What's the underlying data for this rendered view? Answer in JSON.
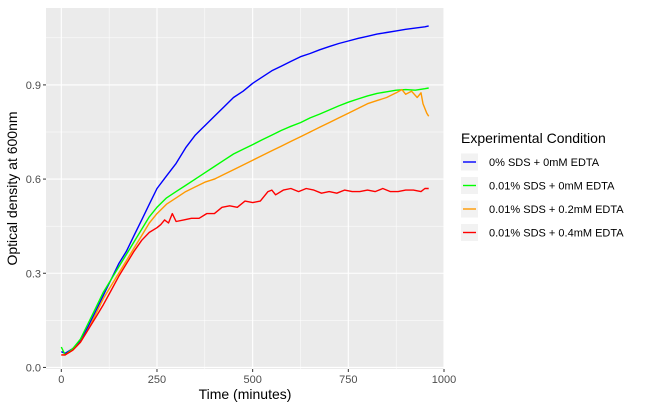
{
  "chart_data": {
    "type": "line",
    "title": "",
    "xlabel": "Time (minutes)",
    "ylabel": "Optical density at 600nm",
    "xlim": [
      -40,
      1000
    ],
    "ylim": [
      -0.005,
      1.145
    ],
    "x_ticks": [
      0,
      250,
      500,
      750,
      1000
    ],
    "x_tick_labels": [
      "0",
      "250",
      "500",
      "750",
      "1000"
    ],
    "y_ticks": [
      0.0,
      0.3,
      0.6,
      0.9
    ],
    "y_tick_labels": [
      "0.0",
      "0.3",
      "0.6",
      "0.9"
    ],
    "grid": true,
    "legend_position": "right",
    "legend_title": "Experimental Condition",
    "series": [
      {
        "name": "0% SDS + 0mM EDTA",
        "color": "#0000ff",
        "points": [
          [
            0,
            0.05
          ],
          [
            10,
            0.045
          ],
          [
            30,
            0.06
          ],
          [
            50,
            0.085
          ],
          [
            70,
            0.13
          ],
          [
            90,
            0.18
          ],
          [
            110,
            0.23
          ],
          [
            130,
            0.28
          ],
          [
            150,
            0.33
          ],
          [
            170,
            0.37
          ],
          [
            190,
            0.42
          ],
          [
            210,
            0.47
          ],
          [
            230,
            0.52
          ],
          [
            250,
            0.57
          ],
          [
            275,
            0.61
          ],
          [
            300,
            0.65
          ],
          [
            325,
            0.7
          ],
          [
            350,
            0.74
          ],
          [
            375,
            0.77
          ],
          [
            400,
            0.8
          ],
          [
            425,
            0.83
          ],
          [
            450,
            0.86
          ],
          [
            475,
            0.88
          ],
          [
            500,
            0.905
          ],
          [
            525,
            0.925
          ],
          [
            550,
            0.945
          ],
          [
            575,
            0.96
          ],
          [
            600,
            0.975
          ],
          [
            625,
            0.99
          ],
          [
            650,
            1.0
          ],
          [
            675,
            1.012
          ],
          [
            700,
            1.022
          ],
          [
            725,
            1.032
          ],
          [
            750,
            1.04
          ],
          [
            775,
            1.048
          ],
          [
            800,
            1.055
          ],
          [
            825,
            1.062
          ],
          [
            850,
            1.067
          ],
          [
            875,
            1.072
          ],
          [
            900,
            1.077
          ],
          [
            925,
            1.081
          ],
          [
            950,
            1.085
          ],
          [
            960,
            1.088
          ]
        ]
      },
      {
        "name": "0.01% SDS + 0mM EDTA",
        "color": "#00ff00",
        "points": [
          [
            0,
            0.065
          ],
          [
            10,
            0.04
          ],
          [
            30,
            0.06
          ],
          [
            50,
            0.09
          ],
          [
            70,
            0.14
          ],
          [
            90,
            0.19
          ],
          [
            110,
            0.24
          ],
          [
            130,
            0.28
          ],
          [
            150,
            0.32
          ],
          [
            170,
            0.36
          ],
          [
            190,
            0.4
          ],
          [
            210,
            0.44
          ],
          [
            230,
            0.48
          ],
          [
            250,
            0.51
          ],
          [
            275,
            0.54
          ],
          [
            300,
            0.56
          ],
          [
            325,
            0.58
          ],
          [
            350,
            0.6
          ],
          [
            375,
            0.62
          ],
          [
            400,
            0.64
          ],
          [
            425,
            0.66
          ],
          [
            450,
            0.68
          ],
          [
            475,
            0.695
          ],
          [
            500,
            0.71
          ],
          [
            525,
            0.725
          ],
          [
            550,
            0.74
          ],
          [
            575,
            0.755
          ],
          [
            600,
            0.768
          ],
          [
            625,
            0.78
          ],
          [
            650,
            0.795
          ],
          [
            675,
            0.807
          ],
          [
            700,
            0.82
          ],
          [
            725,
            0.833
          ],
          [
            750,
            0.845
          ],
          [
            775,
            0.855
          ],
          [
            800,
            0.865
          ],
          [
            825,
            0.873
          ],
          [
            850,
            0.878
          ],
          [
            875,
            0.883
          ],
          [
            900,
            0.885
          ],
          [
            925,
            0.883
          ],
          [
            950,
            0.888
          ],
          [
            960,
            0.89
          ]
        ]
      },
      {
        "name": "0.01% SDS + 0.2mM EDTA",
        "color": "#ff9900",
        "points": [
          [
            0,
            0.04
          ],
          [
            10,
            0.04
          ],
          [
            30,
            0.055
          ],
          [
            50,
            0.08
          ],
          [
            70,
            0.12
          ],
          [
            90,
            0.17
          ],
          [
            110,
            0.22
          ],
          [
            130,
            0.26
          ],
          [
            150,
            0.3
          ],
          [
            170,
            0.34
          ],
          [
            190,
            0.38
          ],
          [
            210,
            0.42
          ],
          [
            230,
            0.46
          ],
          [
            250,
            0.49
          ],
          [
            275,
            0.52
          ],
          [
            300,
            0.54
          ],
          [
            325,
            0.56
          ],
          [
            350,
            0.575
          ],
          [
            375,
            0.59
          ],
          [
            400,
            0.6
          ],
          [
            425,
            0.615
          ],
          [
            450,
            0.63
          ],
          [
            475,
            0.645
          ],
          [
            500,
            0.66
          ],
          [
            525,
            0.675
          ],
          [
            550,
            0.69
          ],
          [
            575,
            0.705
          ],
          [
            600,
            0.72
          ],
          [
            625,
            0.735
          ],
          [
            650,
            0.75
          ],
          [
            675,
            0.765
          ],
          [
            700,
            0.78
          ],
          [
            725,
            0.795
          ],
          [
            750,
            0.81
          ],
          [
            775,
            0.825
          ],
          [
            800,
            0.84
          ],
          [
            825,
            0.85
          ],
          [
            850,
            0.86
          ],
          [
            875,
            0.875
          ],
          [
            890,
            0.885
          ],
          [
            900,
            0.87
          ],
          [
            915,
            0.88
          ],
          [
            930,
            0.86
          ],
          [
            940,
            0.875
          ],
          [
            945,
            0.84
          ],
          [
            955,
            0.81
          ],
          [
            960,
            0.8
          ]
        ]
      },
      {
        "name": "0.01% SDS + 0.4mM EDTA",
        "color": "#ff0000",
        "points": [
          [
            0,
            0.04
          ],
          [
            10,
            0.04
          ],
          [
            30,
            0.055
          ],
          [
            50,
            0.08
          ],
          [
            70,
            0.12
          ],
          [
            90,
            0.16
          ],
          [
            110,
            0.2
          ],
          [
            130,
            0.245
          ],
          [
            150,
            0.29
          ],
          [
            170,
            0.33
          ],
          [
            190,
            0.37
          ],
          [
            210,
            0.405
          ],
          [
            230,
            0.43
          ],
          [
            250,
            0.445
          ],
          [
            260,
            0.455
          ],
          [
            270,
            0.47
          ],
          [
            280,
            0.46
          ],
          [
            290,
            0.49
          ],
          [
            300,
            0.465
          ],
          [
            320,
            0.47
          ],
          [
            340,
            0.475
          ],
          [
            360,
            0.475
          ],
          [
            380,
            0.49
          ],
          [
            400,
            0.49
          ],
          [
            420,
            0.51
          ],
          [
            440,
            0.515
          ],
          [
            460,
            0.51
          ],
          [
            480,
            0.53
          ],
          [
            500,
            0.525
          ],
          [
            520,
            0.53
          ],
          [
            540,
            0.56
          ],
          [
            550,
            0.565
          ],
          [
            560,
            0.55
          ],
          [
            580,
            0.565
          ],
          [
            600,
            0.57
          ],
          [
            620,
            0.56
          ],
          [
            640,
            0.57
          ],
          [
            660,
            0.565
          ],
          [
            680,
            0.555
          ],
          [
            700,
            0.56
          ],
          [
            720,
            0.555
          ],
          [
            740,
            0.565
          ],
          [
            760,
            0.56
          ],
          [
            780,
            0.56
          ],
          [
            800,
            0.565
          ],
          [
            820,
            0.56
          ],
          [
            840,
            0.57
          ],
          [
            860,
            0.56
          ],
          [
            880,
            0.56
          ],
          [
            900,
            0.565
          ],
          [
            920,
            0.565
          ],
          [
            940,
            0.56
          ],
          [
            950,
            0.57
          ],
          [
            960,
            0.57
          ]
        ]
      }
    ]
  }
}
